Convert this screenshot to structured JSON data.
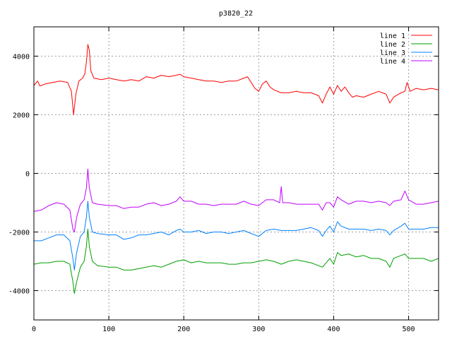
{
  "chart_data": {
    "type": "line",
    "title": "p3820_22",
    "xlabel": "",
    "ylabel": "",
    "xlim": [
      0,
      540
    ],
    "ylim": [
      -5000,
      5000
    ],
    "xticks": [
      0,
      100,
      200,
      300,
      400,
      500
    ],
    "yticks": [
      -4000,
      -2000,
      0,
      2000,
      4000
    ],
    "grid": true,
    "legend_position": "top-right",
    "series": [
      {
        "name": "line 1",
        "color": "#ff0000",
        "points": [
          [
            0,
            3000
          ],
          [
            5,
            3150
          ],
          [
            8,
            2980
          ],
          [
            15,
            3050
          ],
          [
            25,
            3100
          ],
          [
            35,
            3150
          ],
          [
            45,
            3100
          ],
          [
            50,
            2800
          ],
          [
            53,
            2000
          ],
          [
            56,
            2700
          ],
          [
            60,
            3150
          ],
          [
            65,
            3250
          ],
          [
            68,
            3400
          ],
          [
            70,
            3800
          ],
          [
            72,
            4400
          ],
          [
            74,
            4200
          ],
          [
            76,
            3500
          ],
          [
            80,
            3250
          ],
          [
            90,
            3200
          ],
          [
            100,
            3250
          ],
          [
            110,
            3200
          ],
          [
            120,
            3150
          ],
          [
            130,
            3200
          ],
          [
            140,
            3150
          ],
          [
            150,
            3300
          ],
          [
            160,
            3250
          ],
          [
            170,
            3350
          ],
          [
            180,
            3300
          ],
          [
            190,
            3350
          ],
          [
            195,
            3380
          ],
          [
            200,
            3300
          ],
          [
            210,
            3250
          ],
          [
            220,
            3200
          ],
          [
            230,
            3150
          ],
          [
            240,
            3150
          ],
          [
            250,
            3100
          ],
          [
            260,
            3150
          ],
          [
            270,
            3150
          ],
          [
            280,
            3250
          ],
          [
            285,
            3300
          ],
          [
            290,
            3100
          ],
          [
            295,
            2900
          ],
          [
            300,
            2800
          ],
          [
            305,
            3050
          ],
          [
            310,
            3150
          ],
          [
            315,
            2950
          ],
          [
            320,
            2850
          ],
          [
            330,
            2750
          ],
          [
            340,
            2750
          ],
          [
            350,
            2800
          ],
          [
            360,
            2750
          ],
          [
            370,
            2750
          ],
          [
            380,
            2650
          ],
          [
            385,
            2400
          ],
          [
            390,
            2700
          ],
          [
            395,
            2950
          ],
          [
            400,
            2700
          ],
          [
            405,
            3000
          ],
          [
            410,
            2800
          ],
          [
            415,
            2950
          ],
          [
            420,
            2750
          ],
          [
            425,
            2600
          ],
          [
            430,
            2650
          ],
          [
            440,
            2600
          ],
          [
            450,
            2700
          ],
          [
            460,
            2800
          ],
          [
            470,
            2700
          ],
          [
            475,
            2400
          ],
          [
            480,
            2600
          ],
          [
            490,
            2750
          ],
          [
            495,
            2800
          ],
          [
            498,
            3100
          ],
          [
            502,
            2800
          ],
          [
            510,
            2900
          ],
          [
            520,
            2850
          ],
          [
            530,
            2900
          ],
          [
            540,
            2850
          ]
        ]
      },
      {
        "name": "line 2",
        "color": "#00a000",
        "points": [
          [
            0,
            -3100
          ],
          [
            10,
            -3050
          ],
          [
            20,
            -3050
          ],
          [
            30,
            -3000
          ],
          [
            40,
            -3000
          ],
          [
            48,
            -3100
          ],
          [
            52,
            -3700
          ],
          [
            54,
            -4100
          ],
          [
            57,
            -3700
          ],
          [
            62,
            -3200
          ],
          [
            67,
            -3000
          ],
          [
            70,
            -2500
          ],
          [
            72,
            -1900
          ],
          [
            74,
            -2500
          ],
          [
            78,
            -3000
          ],
          [
            85,
            -3150
          ],
          [
            100,
            -3200
          ],
          [
            110,
            -3200
          ],
          [
            120,
            -3300
          ],
          [
            130,
            -3300
          ],
          [
            140,
            -3250
          ],
          [
            150,
            -3200
          ],
          [
            160,
            -3150
          ],
          [
            170,
            -3200
          ],
          [
            180,
            -3100
          ],
          [
            190,
            -3000
          ],
          [
            200,
            -2950
          ],
          [
            210,
            -3050
          ],
          [
            220,
            -3000
          ],
          [
            230,
            -3050
          ],
          [
            240,
            -3050
          ],
          [
            250,
            -3050
          ],
          [
            260,
            -3100
          ],
          [
            270,
            -3100
          ],
          [
            280,
            -3050
          ],
          [
            290,
            -3050
          ],
          [
            300,
            -3000
          ],
          [
            310,
            -2950
          ],
          [
            320,
            -3000
          ],
          [
            330,
            -3100
          ],
          [
            340,
            -3000
          ],
          [
            350,
            -2950
          ],
          [
            360,
            -3000
          ],
          [
            370,
            -3050
          ],
          [
            380,
            -3150
          ],
          [
            385,
            -3200
          ],
          [
            390,
            -3050
          ],
          [
            395,
            -2900
          ],
          [
            400,
            -3100
          ],
          [
            405,
            -2700
          ],
          [
            410,
            -2800
          ],
          [
            420,
            -2750
          ],
          [
            430,
            -2850
          ],
          [
            440,
            -2800
          ],
          [
            450,
            -2900
          ],
          [
            460,
            -2900
          ],
          [
            470,
            -3000
          ],
          [
            475,
            -3200
          ],
          [
            480,
            -2900
          ],
          [
            490,
            -2800
          ],
          [
            495,
            -2750
          ],
          [
            500,
            -2900
          ],
          [
            510,
            -2900
          ],
          [
            520,
            -2900
          ],
          [
            530,
            -3000
          ],
          [
            540,
            -2900
          ]
        ]
      },
      {
        "name": "line 3",
        "color": "#0080ff",
        "points": [
          [
            0,
            -2300
          ],
          [
            10,
            -2300
          ],
          [
            20,
            -2200
          ],
          [
            30,
            -2100
          ],
          [
            40,
            -2100
          ],
          [
            48,
            -2300
          ],
          [
            52,
            -2900
          ],
          [
            54,
            -3300
          ],
          [
            57,
            -2700
          ],
          [
            62,
            -2150
          ],
          [
            67,
            -2000
          ],
          [
            70,
            -1500
          ],
          [
            72,
            -950
          ],
          [
            74,
            -1500
          ],
          [
            78,
            -2000
          ],
          [
            85,
            -2050
          ],
          [
            100,
            -2100
          ],
          [
            110,
            -2100
          ],
          [
            120,
            -2250
          ],
          [
            130,
            -2200
          ],
          [
            140,
            -2100
          ],
          [
            150,
            -2100
          ],
          [
            160,
            -2050
          ],
          [
            170,
            -2000
          ],
          [
            180,
            -2100
          ],
          [
            190,
            -1950
          ],
          [
            195,
            -1900
          ],
          [
            200,
            -2000
          ],
          [
            210,
            -2000
          ],
          [
            220,
            -1950
          ],
          [
            230,
            -2050
          ],
          [
            240,
            -2000
          ],
          [
            250,
            -2000
          ],
          [
            260,
            -2050
          ],
          [
            270,
            -2000
          ],
          [
            280,
            -1950
          ],
          [
            290,
            -2050
          ],
          [
            300,
            -2150
          ],
          [
            310,
            -1950
          ],
          [
            320,
            -1900
          ],
          [
            330,
            -1950
          ],
          [
            340,
            -1950
          ],
          [
            350,
            -1950
          ],
          [
            360,
            -1900
          ],
          [
            370,
            -1850
          ],
          [
            380,
            -1950
          ],
          [
            385,
            -2150
          ],
          [
            390,
            -1950
          ],
          [
            395,
            -1800
          ],
          [
            400,
            -2000
          ],
          [
            405,
            -1650
          ],
          [
            410,
            -1800
          ],
          [
            420,
            -1900
          ],
          [
            430,
            -1900
          ],
          [
            440,
            -1900
          ],
          [
            450,
            -1950
          ],
          [
            460,
            -1900
          ],
          [
            470,
            -1950
          ],
          [
            475,
            -2100
          ],
          [
            480,
            -1950
          ],
          [
            490,
            -1800
          ],
          [
            495,
            -1700
          ],
          [
            500,
            -1900
          ],
          [
            510,
            -1900
          ],
          [
            520,
            -1900
          ],
          [
            530,
            -1850
          ],
          [
            540,
            -1850
          ]
        ]
      },
      {
        "name": "line 4",
        "color": "#c000ff",
        "points": [
          [
            0,
            -1300
          ],
          [
            10,
            -1250
          ],
          [
            20,
            -1100
          ],
          [
            30,
            -1000
          ],
          [
            40,
            -1050
          ],
          [
            48,
            -1250
          ],
          [
            52,
            -1900
          ],
          [
            54,
            -2000
          ],
          [
            57,
            -1500
          ],
          [
            62,
            -1050
          ],
          [
            67,
            -900
          ],
          [
            70,
            -500
          ],
          [
            72,
            150
          ],
          [
            74,
            -500
          ],
          [
            78,
            -1000
          ],
          [
            85,
            -1050
          ],
          [
            100,
            -1100
          ],
          [
            110,
            -1100
          ],
          [
            120,
            -1200
          ],
          [
            130,
            -1150
          ],
          [
            140,
            -1150
          ],
          [
            150,
            -1050
          ],
          [
            160,
            -1000
          ],
          [
            170,
            -1100
          ],
          [
            180,
            -1050
          ],
          [
            190,
            -950
          ],
          [
            195,
            -800
          ],
          [
            200,
            -950
          ],
          [
            210,
            -950
          ],
          [
            220,
            -1050
          ],
          [
            230,
            -1050
          ],
          [
            240,
            -1100
          ],
          [
            250,
            -1050
          ],
          [
            260,
            -1050
          ],
          [
            270,
            -1050
          ],
          [
            280,
            -950
          ],
          [
            290,
            -1050
          ],
          [
            300,
            -1100
          ],
          [
            310,
            -900
          ],
          [
            320,
            -900
          ],
          [
            328,
            -1000
          ],
          [
            330,
            -450
          ],
          [
            332,
            -1000
          ],
          [
            340,
            -1000
          ],
          [
            350,
            -1050
          ],
          [
            360,
            -1050
          ],
          [
            370,
            -1050
          ],
          [
            380,
            -1050
          ],
          [
            385,
            -1250
          ],
          [
            390,
            -1000
          ],
          [
            395,
            -1000
          ],
          [
            400,
            -1150
          ],
          [
            405,
            -800
          ],
          [
            410,
            -900
          ],
          [
            420,
            -1050
          ],
          [
            430,
            -950
          ],
          [
            440,
            -950
          ],
          [
            450,
            -1000
          ],
          [
            460,
            -950
          ],
          [
            470,
            -1000
          ],
          [
            475,
            -1100
          ],
          [
            480,
            -950
          ],
          [
            490,
            -900
          ],
          [
            495,
            -600
          ],
          [
            500,
            -900
          ],
          [
            510,
            -1050
          ],
          [
            520,
            -1050
          ],
          [
            530,
            -1000
          ],
          [
            540,
            -950
          ]
        ]
      }
    ]
  }
}
